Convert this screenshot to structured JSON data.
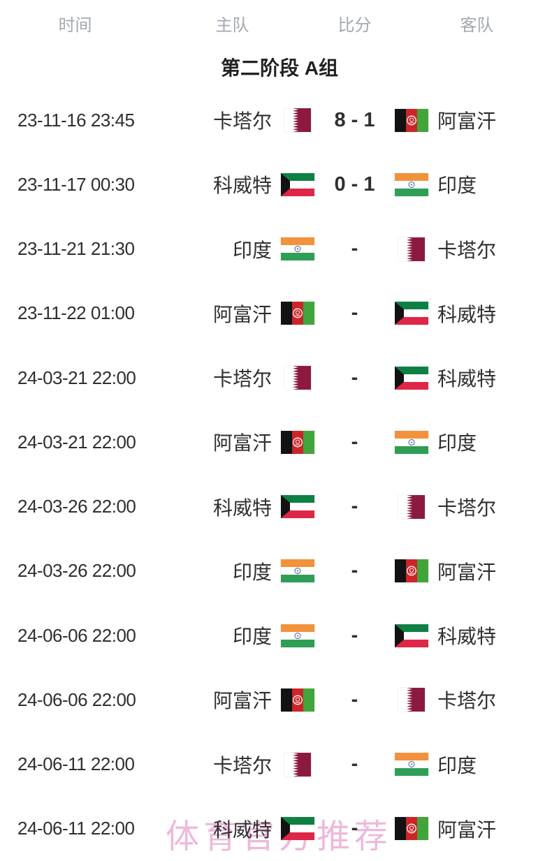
{
  "table": {
    "columns": [
      {
        "key": "time",
        "label": "时间"
      },
      {
        "key": "home",
        "label": "主队"
      },
      {
        "key": "score",
        "label": "比分"
      },
      {
        "key": "away",
        "label": "客队"
      }
    ],
    "group_title": "第二阶段 A组"
  },
  "teams": {
    "qatar": {
      "name": "卡塔尔",
      "flag": "qatar"
    },
    "afghanistan": {
      "name": "阿富汗",
      "flag": "afghanistan"
    },
    "kuwait": {
      "name": "科威特",
      "flag": "kuwait"
    },
    "india": {
      "name": "印度",
      "flag": "india"
    }
  },
  "matches": [
    {
      "time": "23-11-16 23:45",
      "home": "qatar",
      "score": "8 - 1",
      "away": "afghanistan"
    },
    {
      "time": "23-11-17 00:30",
      "home": "kuwait",
      "score": "0 - 1",
      "away": "india"
    },
    {
      "time": "23-11-21 21:30",
      "home": "india",
      "score": "-",
      "away": "qatar"
    },
    {
      "time": "23-11-22 01:00",
      "home": "afghanistan",
      "score": "-",
      "away": "kuwait"
    },
    {
      "time": "24-03-21 22:00",
      "home": "qatar",
      "score": "-",
      "away": "kuwait"
    },
    {
      "time": "24-03-21 22:00",
      "home": "afghanistan",
      "score": "-",
      "away": "india"
    },
    {
      "time": "24-03-26 22:00",
      "home": "kuwait",
      "score": "-",
      "away": "qatar"
    },
    {
      "time": "24-03-26 22:00",
      "home": "india",
      "score": "-",
      "away": "afghanistan"
    },
    {
      "time": "24-06-06 22:00",
      "home": "india",
      "score": "-",
      "away": "kuwait"
    },
    {
      "time": "24-06-06 22:00",
      "home": "afghanistan",
      "score": "-",
      "away": "qatar"
    },
    {
      "time": "24-06-11 22:00",
      "home": "qatar",
      "score": "-",
      "away": "india"
    },
    {
      "time": "24-06-11 22:00",
      "home": "kuwait",
      "score": "-",
      "away": "afghanistan"
    }
  ],
  "watermark": "体育官方推荐",
  "colors": {
    "header_text": "#a3a9b0",
    "body_text": "#2f2f2f",
    "watermark_pink": "#e9a8d4",
    "background": "#ffffff"
  },
  "flag_colors": {
    "qatar": {
      "maroon": "#8C1A3F",
      "white": "#ffffff"
    },
    "kuwait": {
      "green": "#0E8044",
      "white": "#ffffff",
      "red": "#DE2748",
      "black": "#121212"
    },
    "india": {
      "saffron": "#F2923B",
      "white": "#ffffff",
      "green": "#2F9E56",
      "navy": "#3050A0"
    },
    "afghanistan": {
      "black": "#121212",
      "red": "#CE2429",
      "green": "#42A53B",
      "white": "#ffffff"
    }
  }
}
